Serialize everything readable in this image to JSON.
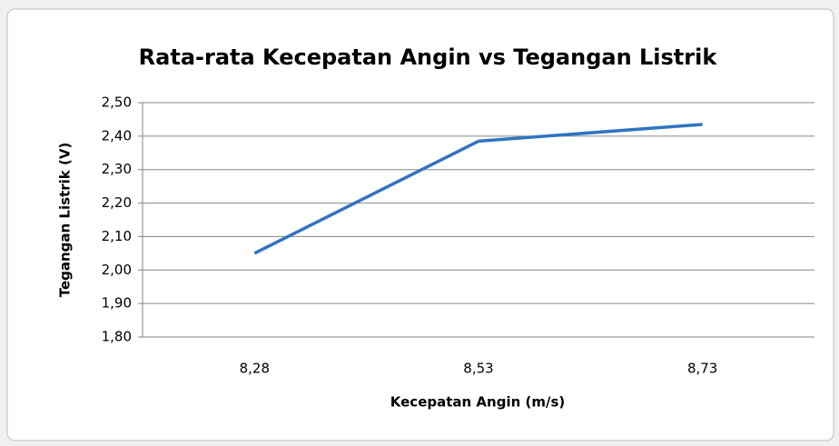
{
  "chart_data": {
    "type": "line",
    "title": "Rata-rata Kecepatan Angin vs Tegangan Listrik",
    "x_label": "Kecepatan Angin (m/s)",
    "y_label": "Tegangan Listrik (V)",
    "categories": [
      "8,28",
      "8,53",
      "8,73"
    ],
    "series": [
      {
        "name": "Tegangan Listrik",
        "color": "#2e75c0",
        "values": [
          2.05,
          2.385,
          2.435
        ]
      }
    ],
    "ylim": [
      1.8,
      2.5
    ],
    "yticks": [
      {
        "value": 1.8,
        "label": "1,80"
      },
      {
        "value": 1.9,
        "label": "1,90"
      },
      {
        "value": 2.0,
        "label": "2,00"
      },
      {
        "value": 2.1,
        "label": "2,10"
      },
      {
        "value": 2.2,
        "label": "2,20"
      },
      {
        "value": 2.3,
        "label": "2,30"
      },
      {
        "value": 2.4,
        "label": "2,40"
      },
      {
        "value": 2.5,
        "label": "2,50"
      }
    ],
    "grid": true
  }
}
